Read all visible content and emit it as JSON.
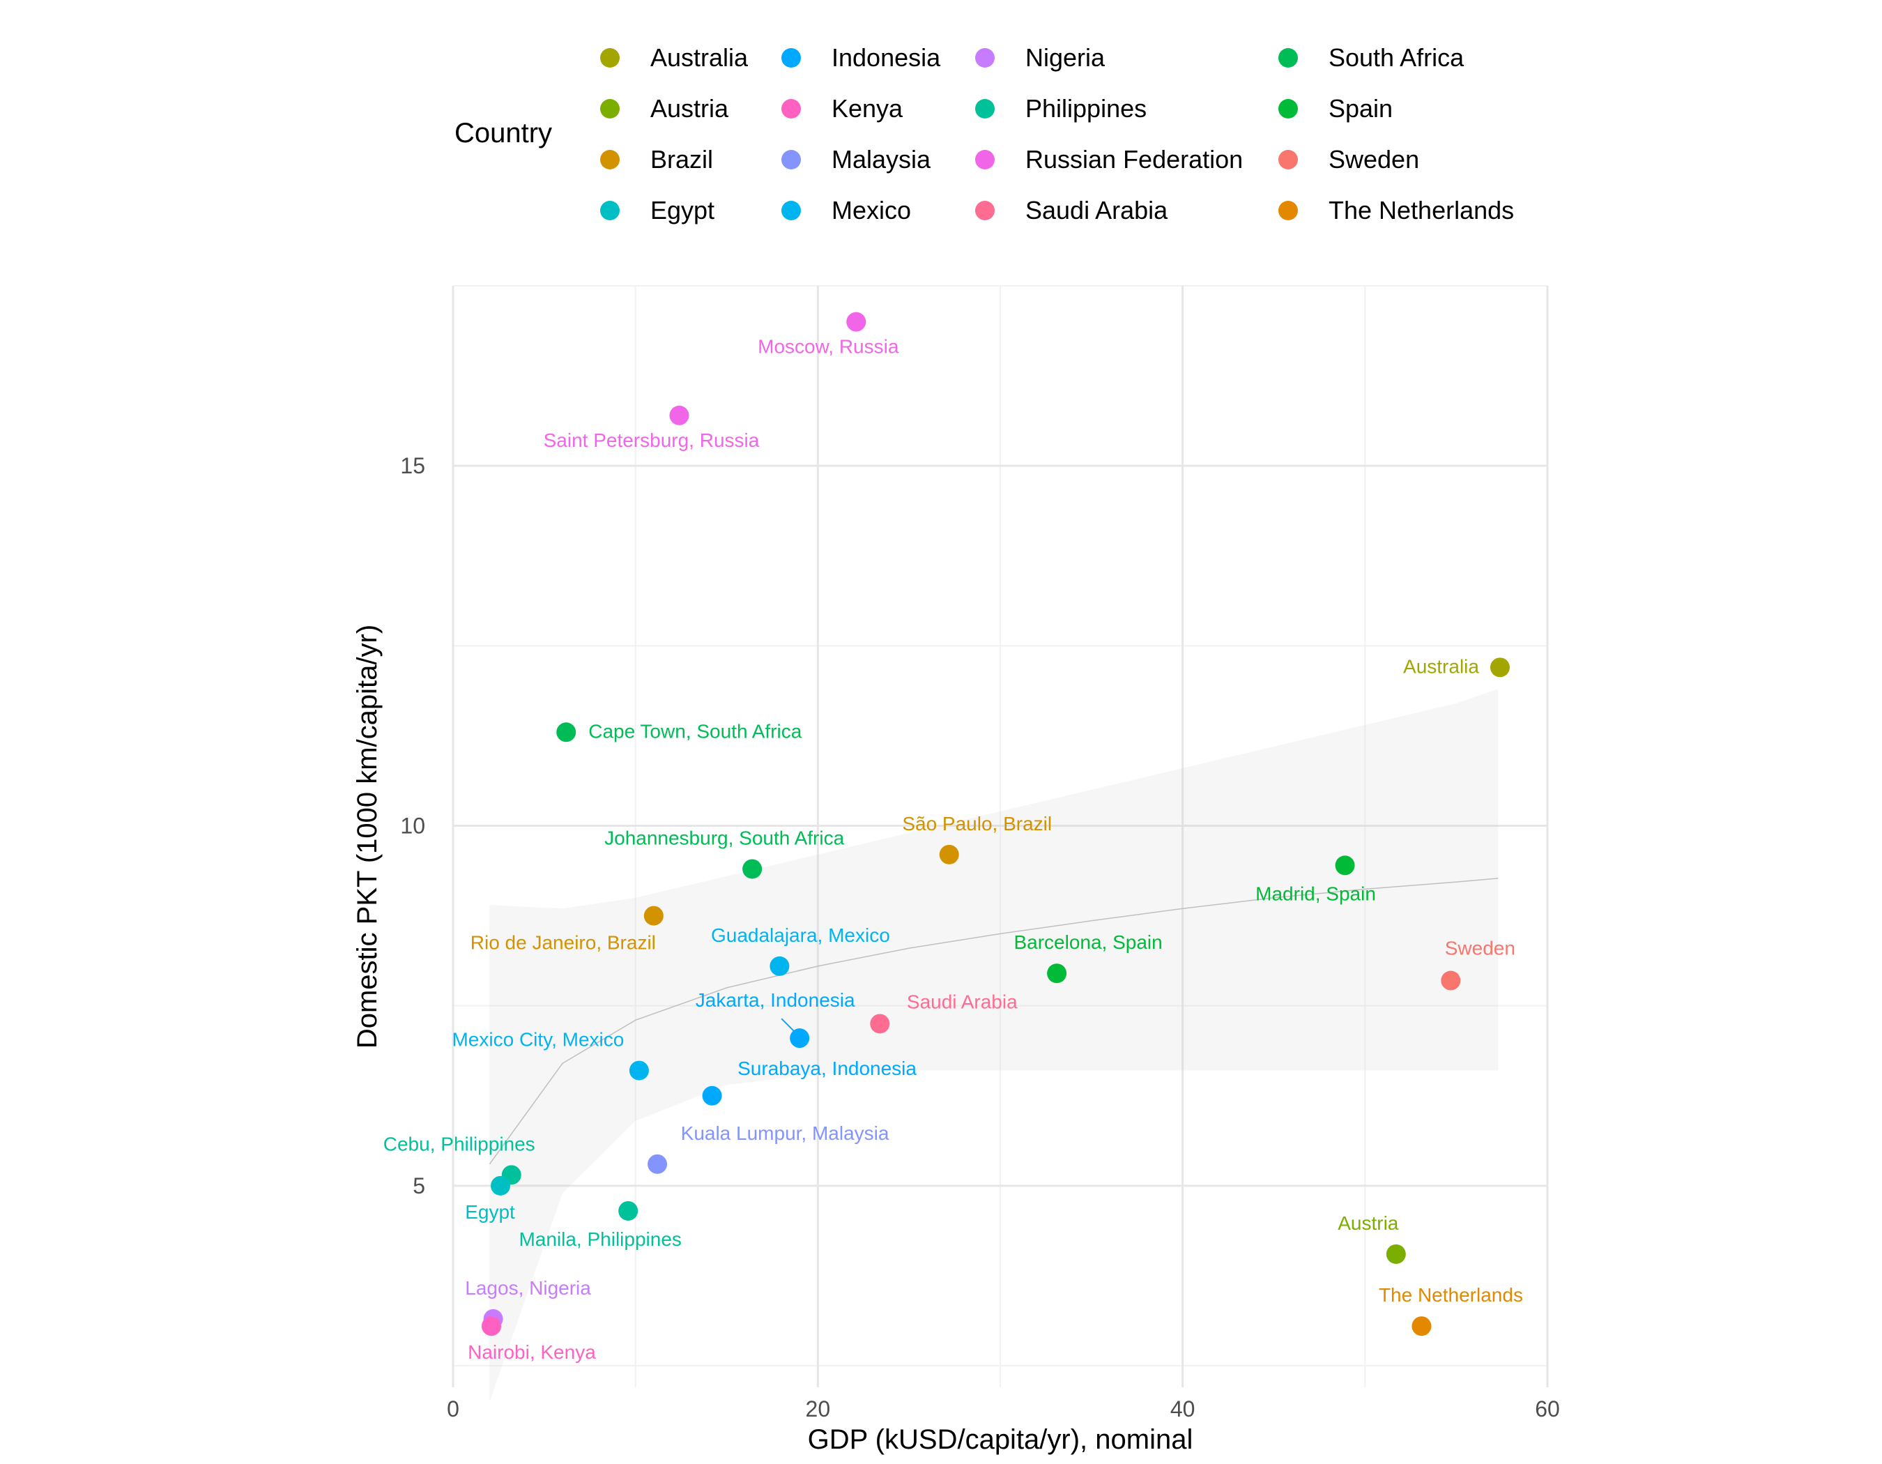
{
  "chart_data": {
    "type": "scatter",
    "xlabel": "GDP (kUSD/capita/yr), nominal",
    "ylabel": "Domestic PKT (1000 km/capita/yr)",
    "xlim": [
      0,
      60
    ],
    "ylim": [
      2.2,
      17.5
    ],
    "x_ticks": [
      0,
      20,
      40,
      60
    ],
    "x_tick_labels": [
      "0",
      "20",
      "40",
      "60"
    ],
    "y_ticks": [
      5,
      10,
      15
    ],
    "y_tick_labels": [
      "5",
      "10",
      "15"
    ],
    "grid": true,
    "legend_title": "Country",
    "legend_position": "top",
    "trend": {
      "type": "loess-smooth-with-confidence-band",
      "x": [
        2,
        6,
        10,
        15,
        20,
        25,
        30,
        35,
        40,
        45,
        50,
        55,
        57.3
      ],
      "y": [
        5.3,
        6.7,
        7.3,
        7.75,
        8.05,
        8.3,
        8.5,
        8.68,
        8.85,
        9.0,
        9.12,
        9.22,
        9.27
      ],
      "band_lower": [
        2.0,
        4.9,
        5.9,
        6.4,
        6.55,
        6.6,
        6.6,
        6.6,
        6.6,
        6.6,
        6.6,
        6.6,
        6.6
      ],
      "band_upper": [
        8.9,
        8.85,
        9.0,
        9.3,
        9.6,
        9.9,
        10.2,
        10.5,
        10.8,
        11.1,
        11.4,
        11.7,
        11.9
      ]
    },
    "series": [
      {
        "name": "Australia",
        "color": "#A3A500"
      },
      {
        "name": "Austria",
        "color": "#7CAE00"
      },
      {
        "name": "Brazil",
        "color": "#D39200"
      },
      {
        "name": "Egypt",
        "color": "#00BFC4"
      },
      {
        "name": "Indonesia",
        "color": "#00A9FF"
      },
      {
        "name": "Kenya",
        "color": "#FF61C3"
      },
      {
        "name": "Malaysia",
        "color": "#8494FF"
      },
      {
        "name": "Mexico",
        "color": "#00B4F0"
      },
      {
        "name": "Nigeria",
        "color": "#C77CFF"
      },
      {
        "name": "Philippines",
        "color": "#00C19A"
      },
      {
        "name": "Russian Federation",
        "color": "#F166E8"
      },
      {
        "name": "Saudi Arabia",
        "color": "#FF6C91"
      },
      {
        "name": "South Africa",
        "color": "#00BC56"
      },
      {
        "name": "Spain",
        "color": "#00BA38"
      },
      {
        "name": "Sweden",
        "color": "#F8766D"
      },
      {
        "name": "The Netherlands",
        "color": "#E38900"
      }
    ],
    "points": [
      {
        "label": "Moscow, Russia",
        "country": "Russian Federation",
        "x": 22.1,
        "y": 17.0
      },
      {
        "label": "Saint Petersburg, Russia",
        "country": "Russian Federation",
        "x": 12.4,
        "y": 15.7
      },
      {
        "label": "Australia",
        "country": "Australia",
        "x": 57.4,
        "y": 12.2
      },
      {
        "label": "Cape Town, South Africa",
        "country": "South Africa",
        "x": 6.2,
        "y": 11.3
      },
      {
        "label": "São Paulo, Brazil",
        "country": "Brazil",
        "x": 27.2,
        "y": 9.6
      },
      {
        "label": "Johannesburg, South Africa",
        "country": "South Africa",
        "x": 16.4,
        "y": 9.4
      },
      {
        "label": "Madrid, Spain",
        "country": "Spain",
        "x": 48.9,
        "y": 9.45
      },
      {
        "label": "Rio de Janeiro, Brazil",
        "country": "Brazil",
        "x": 11.0,
        "y": 8.75
      },
      {
        "label": "Guadalajara, Mexico",
        "country": "Mexico",
        "x": 17.9,
        "y": 8.05
      },
      {
        "label": "Barcelona, Spain",
        "country": "Spain",
        "x": 33.1,
        "y": 7.95
      },
      {
        "label": "Sweden",
        "country": "Sweden",
        "x": 54.7,
        "y": 7.85
      },
      {
        "label": "Saudi Arabia",
        "country": "Saudi Arabia",
        "x": 23.4,
        "y": 7.25
      },
      {
        "label": "Jakarta, Indonesia",
        "country": "Indonesia",
        "x": 19.0,
        "y": 7.05
      },
      {
        "label": "Mexico City, Mexico",
        "country": "Mexico",
        "x": 10.2,
        "y": 6.6
      },
      {
        "label": "Surabaya, Indonesia",
        "country": "Indonesia",
        "x": 14.2,
        "y": 6.25
      },
      {
        "label": "Kuala Lumpur, Malaysia",
        "country": "Malaysia",
        "x": 11.2,
        "y": 5.3
      },
      {
        "label": "Cebu, Philippines",
        "country": "Philippines",
        "x": 3.2,
        "y": 5.15
      },
      {
        "label": "Egypt",
        "country": "Egypt",
        "x": 2.6,
        "y": 5.0
      },
      {
        "label": "Manila, Philippines",
        "country": "Philippines",
        "x": 9.6,
        "y": 4.65
      },
      {
        "label": "Austria",
        "country": "Austria",
        "x": 51.7,
        "y": 4.05
      },
      {
        "label": "Lagos, Nigeria",
        "country": "Nigeria",
        "x": 2.2,
        "y": 3.15
      },
      {
        "label": "Nairobi, Kenya",
        "country": "Kenya",
        "x": 2.1,
        "y": 3.05
      },
      {
        "label": "The Netherlands",
        "country": "The Netherlands",
        "x": 53.1,
        "y": 3.05
      }
    ]
  }
}
